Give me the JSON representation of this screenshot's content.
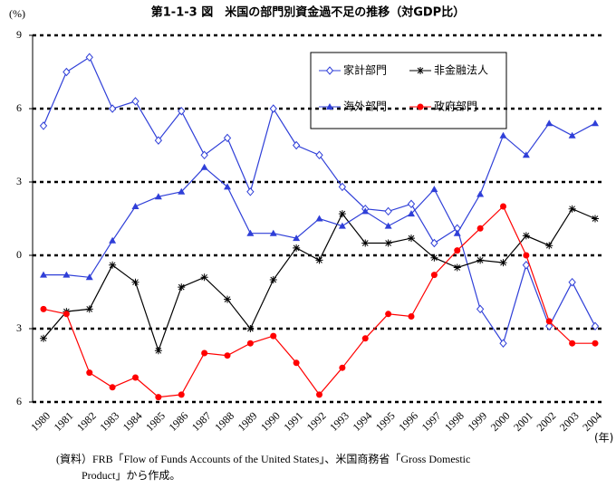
{
  "chart_data": {
    "type": "line",
    "title": "第1-1-3 図　米国の部門別資金過不足の推移（対GDP比）",
    "y_label": "(%)",
    "x_label": "(年)",
    "note": [
      "(資料）FRB「Flow of Funds Accounts of the United States」、米国商務省「Gross Domestic",
      "Product」から作成。"
    ],
    "categories": [
      "1980",
      "1981",
      "1982",
      "1983",
      "1984",
      "1985",
      "1986",
      "1987",
      "1988",
      "1989",
      "1990",
      "1991",
      "1992",
      "1993",
      "1994",
      "1995",
      "1996",
      "1997",
      "1998",
      "1999",
      "2000",
      "2001",
      "2002",
      "2003",
      "2004"
    ],
    "series": [
      {
        "name": "家計部門",
        "color": "#2f3fd8",
        "marker": "diamond",
        "values": [
          5.3,
          7.5,
          8.1,
          6.0,
          6.3,
          4.7,
          5.9,
          4.1,
          4.8,
          2.6,
          6.0,
          4.5,
          4.1,
          2.8,
          1.9,
          1.8,
          2.1,
          0.5,
          1.1,
          -2.2,
          -3.6,
          -0.4,
          -2.9,
          -1.1,
          -2.9
        ]
      },
      {
        "name": "非金融法人",
        "color": "#000000",
        "marker": "asterisk",
        "values": [
          -3.4,
          -2.3,
          -2.2,
          -0.4,
          -1.1,
          -3.9,
          -1.3,
          -0.9,
          -1.8,
          -3.0,
          -1.0,
          0.3,
          -0.2,
          1.7,
          0.5,
          0.5,
          0.7,
          -0.1,
          -0.5,
          -0.2,
          -0.3,
          0.8,
          0.4,
          1.9,
          1.5
        ]
      },
      {
        "name": "海外部門",
        "color": "#2f3fd8",
        "marker": "triangle",
        "values": [
          -0.8,
          -0.8,
          -0.9,
          0.6,
          2.0,
          2.4,
          2.6,
          3.6,
          2.8,
          0.9,
          0.9,
          0.7,
          1.5,
          1.2,
          1.8,
          1.2,
          1.7,
          2.7,
          0.9,
          2.5,
          4.9,
          4.1,
          5.4,
          4.9,
          5.4
        ]
      },
      {
        "name": "政府部門",
        "color": "#ff0000",
        "marker": "circle",
        "values": [
          -2.2,
          -2.4,
          -4.8,
          -5.4,
          -5.0,
          -5.8,
          -5.7,
          -4.0,
          -4.1,
          -3.6,
          -3.3,
          -4.4,
          -5.7,
          -4.6,
          -3.4,
          -2.4,
          -2.5,
          -0.8,
          0.2,
          1.1,
          2.0,
          0.0,
          -2.7,
          -3.6,
          -3.6
        ]
      }
    ],
    "ylim": [
      -6,
      9
    ],
    "yticks": [
      {
        "value": -6,
        "label": "6"
      },
      {
        "value": -3,
        "label": "3"
      },
      0,
      3,
      6,
      9
    ],
    "grid": true
  }
}
